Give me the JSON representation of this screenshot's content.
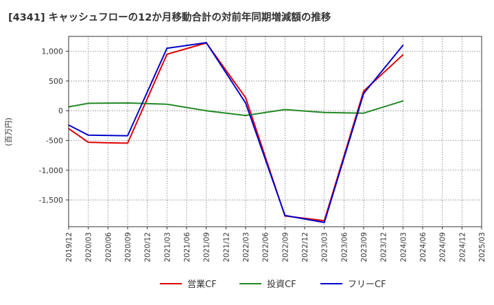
{
  "chart_data": {
    "type": "line",
    "title": "[4341]  キャッシュフローの12か月移動合計の対前年同期増減額の推移",
    "xlabel": "",
    "ylabel": "(百万円)",
    "ylim": [
      -1950,
      1250
    ],
    "yticks": [
      1000,
      500,
      0,
      -500,
      -1000,
      -1500
    ],
    "ytick_labels": [
      "1,000",
      "500",
      "0",
      "-500",
      "-1,000",
      "-1,500"
    ],
    "x_labels": [
      "2019/12",
      "2020/03",
      "2020/06",
      "2020/09",
      "2020/12",
      "2021/03",
      "2021/06",
      "2021/09",
      "2021/12",
      "2022/03",
      "2022/06",
      "2022/09",
      "2022/12",
      "2023/03",
      "2023/06",
      "2023/09",
      "2023/12",
      "2024/03",
      "2024/06",
      "2024/09",
      "2024/12",
      "2025/03"
    ],
    "grid": true,
    "legend_position": "bottom",
    "series": [
      {
        "name": "営業CF",
        "color": "#dd0000",
        "values": [
          -300,
          -530,
          -540,
          -545,
          null,
          950,
          null,
          1140,
          null,
          220,
          null,
          -1770,
          null,
          -1850,
          null,
          330,
          null,
          940,
          null,
          null,
          null,
          null
        ]
      },
      {
        "name": "投資CF",
        "color": "#228822",
        "values": [
          65,
          125,
          null,
          130,
          null,
          110,
          null,
          0,
          null,
          -80,
          null,
          20,
          null,
          -30,
          null,
          -40,
          null,
          165,
          null,
          null,
          null,
          null
        ]
      },
      {
        "name": "フリーCF",
        "color": "#0000cc",
        "values": [
          -240,
          -410,
          null,
          -420,
          null,
          1050,
          null,
          1145,
          null,
          130,
          null,
          -1760,
          null,
          -1880,
          null,
          290,
          null,
          1100,
          null,
          null,
          null,
          null
        ]
      }
    ]
  }
}
